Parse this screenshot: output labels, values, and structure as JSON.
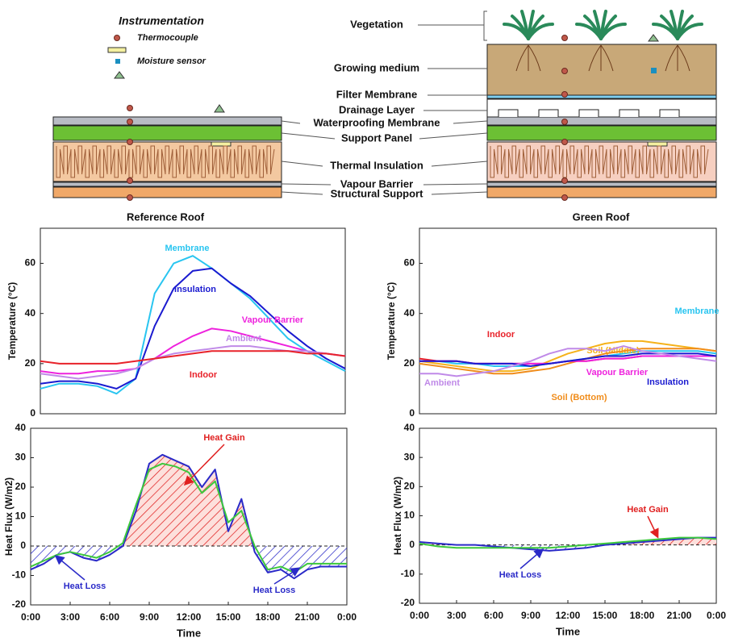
{
  "diagram": {
    "legend": {
      "title": "Instrumentation",
      "items": [
        "Thermocouple",
        "Moisture sensor"
      ]
    },
    "layers": [
      "Vegetation",
      "Growing medium",
      "Filter Membrane",
      "Drainage Layer",
      "Waterproofing Membrane",
      "Support Panel",
      "Thermal Insulation",
      "Vapour Barrier",
      "Structural Support"
    ]
  },
  "chart_data": [
    {
      "type": "line",
      "title": "Reference Roof",
      "y_label": "Temperature (°C)",
      "x": [
        0,
        1.5,
        3,
        4.5,
        6,
        7.5,
        9,
        10.5,
        12,
        13.5,
        15,
        16.5,
        18,
        19.5,
        21,
        22.5,
        24
      ],
      "xlim": [
        0,
        24
      ],
      "ylim": [
        0,
        74
      ],
      "yticks": [
        0,
        20,
        40,
        60
      ],
      "series": [
        {
          "name": "Membrane",
          "color": "#29c5f0",
          "values": [
            10,
            12,
            12,
            11,
            8,
            14,
            48,
            60,
            63,
            58,
            52,
            46,
            38,
            30,
            25,
            21,
            17
          ]
        },
        {
          "name": "Insulation",
          "color": "#1a1ad0",
          "values": [
            12,
            13,
            13,
            12,
            10,
            14,
            35,
            50,
            57,
            58,
            52,
            47,
            40,
            33,
            27,
            22,
            18
          ]
        },
        {
          "name": "Vapour Barrier",
          "color": "#ee22dd",
          "values": [
            17,
            16,
            16,
            17,
            17,
            18,
            22,
            27,
            31,
            34,
            33,
            31,
            29,
            27,
            25,
            24,
            23
          ]
        },
        {
          "name": "Ambient",
          "color": "#c08ae8",
          "values": [
            16,
            15,
            14,
            15,
            16,
            18,
            22,
            24,
            25,
            26,
            27,
            27,
            26,
            25,
            25,
            24,
            23
          ]
        },
        {
          "name": "Indoor",
          "color": "#e8222a",
          "values": [
            21,
            20,
            20,
            20,
            20,
            21,
            22,
            23,
            24,
            25,
            25,
            25,
            25,
            25,
            24,
            24,
            23
          ]
        }
      ]
    },
    {
      "type": "line",
      "title": "Green Roof",
      "y_label": "Temperature (°C)",
      "x": [
        0,
        1.5,
        3,
        4.5,
        6,
        7.5,
        9,
        10.5,
        12,
        13.5,
        15,
        16.5,
        18,
        19.5,
        21,
        22.5,
        24
      ],
      "xlim": [
        0,
        24
      ],
      "ylim": [
        0,
        74
      ],
      "yticks": [
        0,
        20,
        40,
        60
      ],
      "series": [
        {
          "name": "Membrane",
          "color": "#29c5f0",
          "values": [
            21,
            21,
            20,
            20,
            19,
            19,
            19,
            20,
            21,
            22,
            23,
            24,
            25,
            25,
            25,
            25,
            24
          ]
        },
        {
          "name": "Soil (Middle)",
          "color": "#f5b21a",
          "values": [
            21,
            20,
            19,
            18,
            17,
            17,
            18,
            21,
            24,
            26,
            28,
            29,
            29,
            28,
            27,
            26,
            25
          ]
        },
        {
          "name": "Soil (Bottom)",
          "color": "#f08c1a",
          "values": [
            20,
            19,
            18,
            17,
            16,
            16,
            17,
            18,
            20,
            22,
            24,
            25,
            26,
            26,
            26,
            26,
            25
          ]
        },
        {
          "name": "Indoor",
          "color": "#e8222a",
          "values": [
            22,
            21,
            21,
            20,
            20,
            20,
            20,
            20,
            21,
            21,
            22,
            22,
            23,
            23,
            23,
            23,
            23
          ]
        },
        {
          "name": "Vapour Barrier",
          "color": "#ee22dd",
          "values": [
            21,
            21,
            21,
            20,
            20,
            20,
            20,
            20,
            21,
            21,
            22,
            22,
            23,
            23,
            23,
            23,
            23
          ]
        },
        {
          "name": "Insulation",
          "color": "#1a1ad0",
          "values": [
            21,
            21,
            21,
            20,
            20,
            20,
            19,
            20,
            21,
            22,
            23,
            23,
            24,
            24,
            24,
            24,
            23
          ]
        },
        {
          "name": "Ambient",
          "color": "#c08ae8",
          "values": [
            16,
            16,
            15,
            16,
            17,
            19,
            21,
            24,
            26,
            26,
            25,
            27,
            25,
            24,
            23,
            22,
            21
          ]
        }
      ]
    },
    {
      "type": "line",
      "y_label": "Heat Flux (W/m2)",
      "x_label": "Time",
      "x": [
        0,
        1,
        2,
        3,
        4,
        5,
        6,
        7,
        8,
        9,
        10,
        11,
        12,
        13,
        14,
        15,
        16,
        17,
        18,
        19,
        20,
        21,
        22,
        23,
        24
      ],
      "xlim": [
        0,
        24
      ],
      "ylim": [
        -20,
        40
      ],
      "yticks": [
        -20,
        -10,
        0,
        10,
        20,
        30,
        40
      ],
      "xticks": [
        {
          "value": 0,
          "label": "0:00"
        },
        {
          "value": 3,
          "label": "3:00"
        },
        {
          "value": 6,
          "label": "6:00"
        },
        {
          "value": 9,
          "label": "9:00"
        },
        {
          "value": 12,
          "label": "12:00"
        },
        {
          "value": 15,
          "label": "15:00"
        },
        {
          "value": 18,
          "label": "18:00"
        },
        {
          "value": 21,
          "label": "21:00"
        },
        {
          "value": 24,
          "label": "0:00"
        }
      ],
      "series": [
        {
          "color": "#2a2ac8",
          "values": [
            -8,
            -6,
            -3,
            -2,
            -4,
            -5,
            -3,
            0,
            12,
            28,
            31,
            29,
            27,
            20,
            26,
            5,
            16,
            -2,
            -9,
            -8,
            -11,
            -8,
            -7,
            -7,
            -7
          ]
        },
        {
          "color": "#3cc83c",
          "values": [
            -7,
            -5,
            -3,
            -2,
            -3,
            -4,
            -2,
            1,
            14,
            26,
            28,
            27,
            25,
            18,
            22,
            8,
            12,
            0,
            -8,
            -7,
            -9,
            -6,
            -6,
            -6,
            -6
          ]
        }
      ],
      "annotations": [
        "Heat Gain",
        "Heat Loss",
        "Heat Loss"
      ]
    },
    {
      "type": "line",
      "y_label": "Heat Flux (W/m2)",
      "x_label": "Time",
      "x": [
        0,
        1.5,
        3,
        4.5,
        6,
        7.5,
        9,
        10.5,
        12,
        13.5,
        15,
        16.5,
        18,
        19.5,
        21,
        22.5,
        24
      ],
      "xlim": [
        0,
        24
      ],
      "ylim": [
        -20,
        40
      ],
      "yticks": [
        -20,
        -10,
        0,
        10,
        20,
        30,
        40
      ],
      "xticks": [
        {
          "value": 0,
          "label": "0:00"
        },
        {
          "value": 3,
          "label": "3:00"
        },
        {
          "value": 6,
          "label": "6:00"
        },
        {
          "value": 9,
          "label": "9:00"
        },
        {
          "value": 12,
          "label": "12:00"
        },
        {
          "value": 15,
          "label": "15:00"
        },
        {
          "value": 18,
          "label": "18:00"
        },
        {
          "value": 21,
          "label": "21:00"
        },
        {
          "value": 24,
          "label": "0:00"
        }
      ],
      "series": [
        {
          "color": "#2a2ac8",
          "values": [
            1,
            0.5,
            0,
            0,
            -0.5,
            -1,
            -1.5,
            -2,
            -1.5,
            -1,
            0,
            0.5,
            1,
            1.5,
            2,
            2.5,
            2.5
          ]
        },
        {
          "color": "#3cc83c",
          "values": [
            0.5,
            -0.5,
            -1,
            -1,
            -1,
            -1,
            -1,
            -1,
            -0.5,
            0,
            0.5,
            1,
            1.5,
            2,
            2.5,
            2.5,
            2
          ]
        }
      ],
      "annotations": [
        "Heat Gain",
        "Heat Loss"
      ]
    }
  ]
}
